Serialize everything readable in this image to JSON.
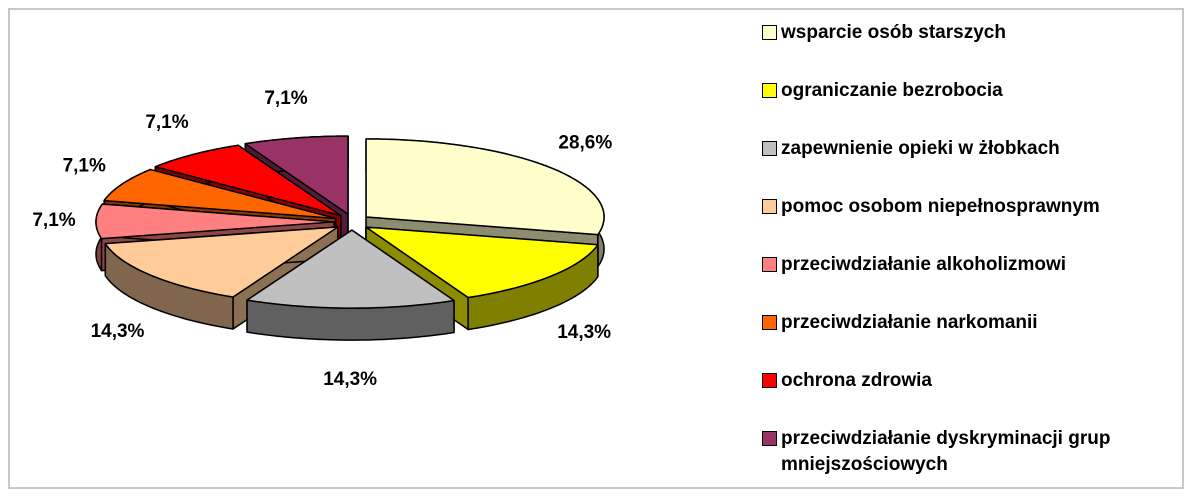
{
  "chart_data": {
    "type": "pie",
    "categories": [
      "wsparcie osób starszych",
      "ograniczanie bezrobocia",
      "zapewnienie opieki w żłobkach",
      "pomoc osobom niepełnosprawnym",
      "przeciwdziałanie alkoholizmowi",
      "przeciwdziałanie narkomanii",
      "ochrona zdrowia",
      "przeciwdziałanie dyskryminacji grup mniejszościowych"
    ],
    "values": [
      28.6,
      14.3,
      14.3,
      14.3,
      7.1,
      7.1,
      7.1,
      7.1
    ],
    "value_labels": [
      "28,6%",
      "14,3%",
      "14,3%",
      "14,3%",
      "7,1%",
      "7,1%",
      "7,1%",
      "7,1%"
    ],
    "colors": [
      "#ffffcc",
      "#ffff00",
      "#c0c0c0",
      "#ffcc99",
      "#ff8080",
      "#ff6600",
      "#ff0000",
      "#993366"
    ],
    "legend": "right"
  }
}
